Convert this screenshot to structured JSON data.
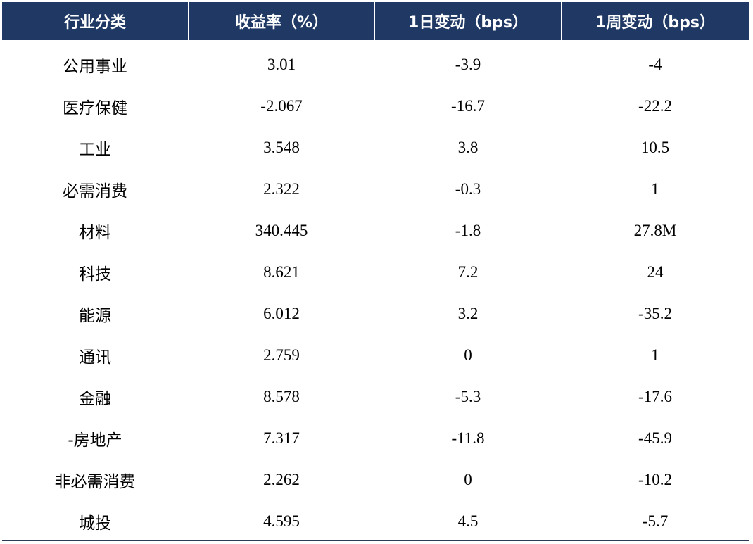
{
  "table": {
    "header": [
      "行业分类",
      "收益率（%）",
      "1日变动（bps）",
      "1周变动（bps）"
    ],
    "rows": [
      [
        "公用事业",
        "3.01",
        "-3.9",
        "-4"
      ],
      [
        "医疗保健",
        "-2.067",
        "-16.7",
        "-22.2"
      ],
      [
        "工业",
        "3.548",
        "3.8",
        "10.5"
      ],
      [
        "必需消费",
        "2.322",
        "-0.3",
        "1"
      ],
      [
        "材料",
        "340.445",
        "-1.8",
        "27.8M"
      ],
      [
        "科技",
        "8.621",
        "7.2",
        "24"
      ],
      [
        "能源",
        "6.012",
        "3.2",
        "-35.2"
      ],
      [
        "通讯",
        "2.759",
        "0",
        "1"
      ],
      [
        "金融",
        "8.578",
        "-5.3",
        "-17.6"
      ],
      [
        "-房地产",
        "7.317",
        "-11.8",
        "-45.9"
      ],
      [
        "非必需消费",
        "2.262",
        "0",
        "-10.2"
      ],
      [
        "城投",
        "4.595",
        "4.5",
        "-5.7"
      ]
    ]
  }
}
